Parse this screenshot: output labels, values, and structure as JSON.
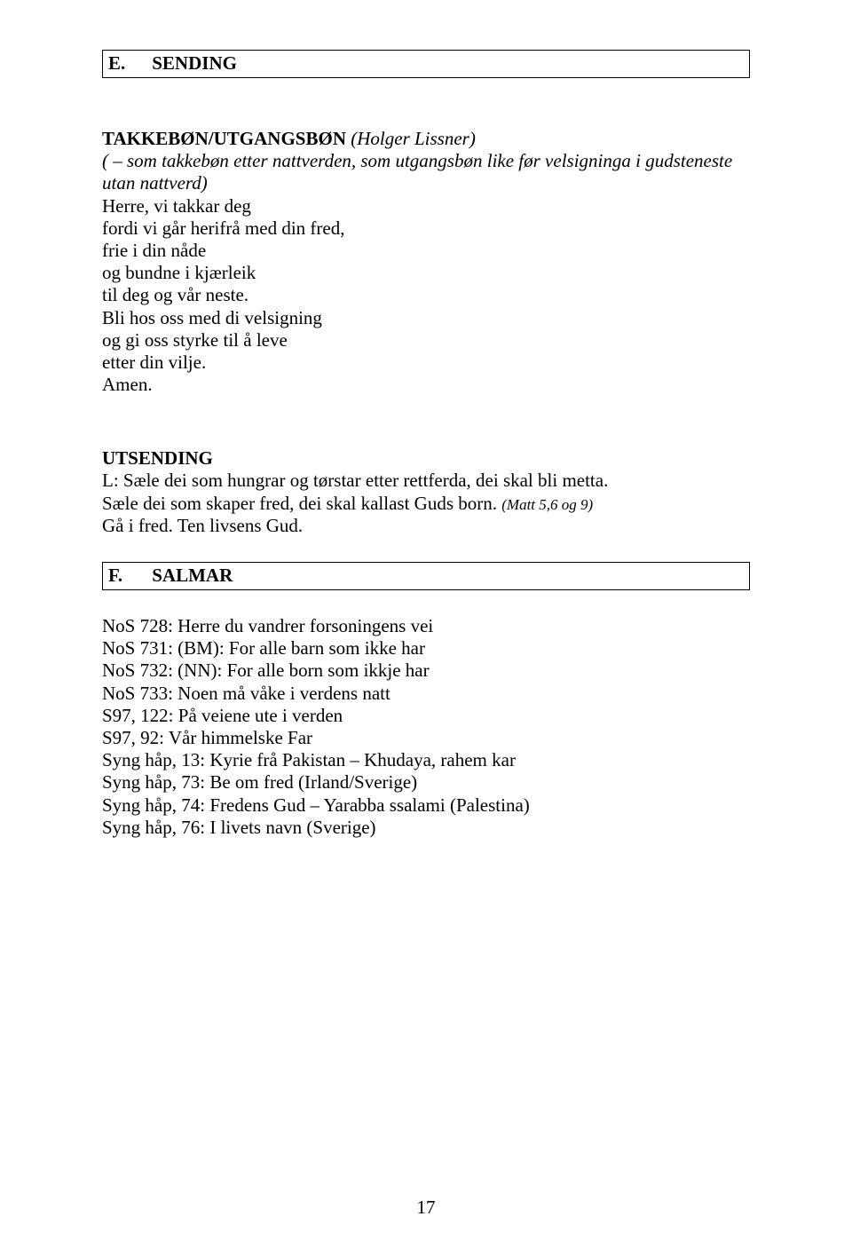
{
  "sectionE": {
    "letter": "E.",
    "title": "SENDING",
    "heading": "TAKKEBØN/UTGANGSBØN",
    "headingAttr": "(Holger Lissner)",
    "subnote": "( – som takkebøn etter nattverden, som utgangsbøn like før velsigninga i gudsteneste utan nattverd)",
    "prayer": [
      "Herre, vi takkar deg",
      "fordi vi går herifrå med din fred,",
      "frie i din nåde",
      "og bundne i kjærleik",
      "til deg og vår neste.",
      "Bli hos oss med di velsigning",
      "og gi oss styrke til å leve",
      "etter din vilje.",
      "Amen."
    ],
    "utsending": {
      "title": "UTSENDING",
      "line1": "L: Sæle dei som hungrar og tørstar etter rettferda, dei skal bli metta.",
      "line2a": "Sæle dei som skaper fred, dei skal kallast Guds born. ",
      "line2ref": "(Matt 5,6 og 9)",
      "line3": "Gå i fred. Ten livsens Gud."
    }
  },
  "sectionF": {
    "letter": "F.",
    "title": "SALMAR",
    "items": [
      "NoS 728: Herre du vandrer forsoningens vei",
      "NoS 731: (BM): For alle barn som ikke har",
      "NoS 732: (NN): For alle born som ikkje har",
      "NoS 733: Noen må våke i verdens natt",
      "S97, 122: På veiene ute i verden",
      "S97, 92: Vår himmelske Far",
      "Syng håp, 13: Kyrie frå Pakistan – Khudaya, rahem kar",
      "Syng håp, 73: Be om fred (Irland/Sverige)",
      "Syng håp, 74: Fredens Gud – Yarabba ssalami (Palestina)",
      "Syng håp, 76: I livets navn (Sverige)"
    ]
  },
  "pageNumber": "17"
}
